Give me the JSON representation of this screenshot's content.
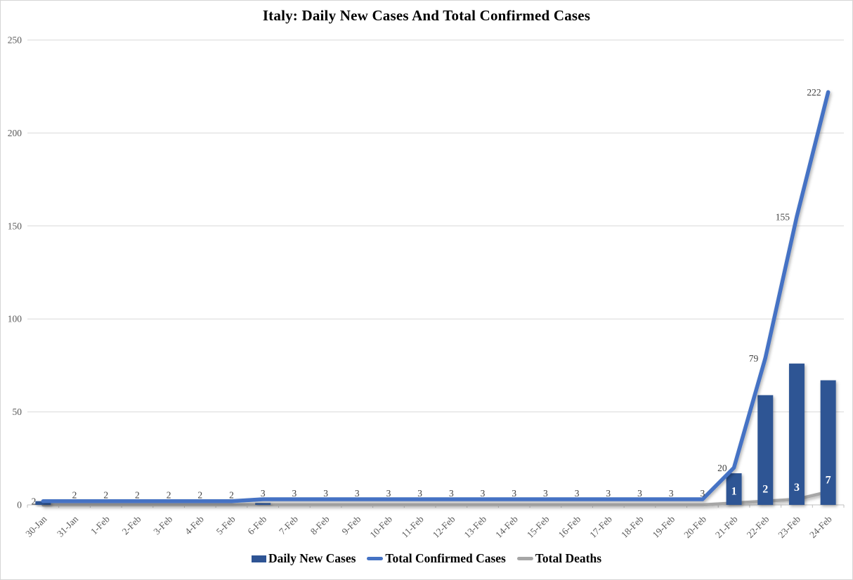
{
  "title": "Italy: Daily New Cases And Total Confirmed Cases",
  "legend": {
    "items": [
      {
        "label": "Daily New Cases",
        "marker": "bar-swatch",
        "color": "#2E5494"
      },
      {
        "label": "Total Confirmed Cases",
        "marker": "line-swatch",
        "color": "#4472C4"
      },
      {
        "label": "Total Deaths",
        "marker": "line-swatch",
        "color": "#A6A6A6"
      }
    ]
  },
  "axes": {
    "y_ticks": [
      "0",
      "50",
      "100",
      "150",
      "200",
      "250"
    ],
    "y_label_color": "#595959",
    "gridline_color": "#D9D9D9",
    "axis_line_color": "#BFBFBF"
  },
  "chart_data": {
    "type": "combo",
    "title": "Italy: Daily New Cases And Total Confirmed Cases",
    "xlabel": "",
    "ylabel": "",
    "ylim": [
      0,
      250
    ],
    "ytick_step": 50,
    "grid": true,
    "legend_position": "bottom",
    "categories": [
      "30-Jan",
      "31-Jan",
      "1-Feb",
      "2-Feb",
      "3-Feb",
      "4-Feb",
      "5-Feb",
      "6-Feb",
      "7-Feb",
      "8-Feb",
      "9-Feb",
      "10-Feb",
      "11-Feb",
      "12-Feb",
      "13-Feb",
      "14-Feb",
      "15-Feb",
      "16-Feb",
      "17-Feb",
      "18-Feb",
      "19-Feb",
      "20-Feb",
      "21-Feb",
      "22-Feb",
      "23-Feb",
      "24-Feb"
    ],
    "series": [
      {
        "name": "Daily New Cases",
        "type": "bar",
        "color": "#2E5494",
        "values": [
          2,
          0,
          0,
          0,
          0,
          0,
          0,
          1,
          0,
          0,
          0,
          0,
          0,
          0,
          0,
          0,
          0,
          0,
          0,
          0,
          0,
          0,
          17,
          59,
          76,
          67
        ]
      },
      {
        "name": "Total Confirmed Cases",
        "type": "line",
        "color": "#4472C4",
        "values": [
          2,
          2,
          2,
          2,
          2,
          2,
          2,
          3,
          3,
          3,
          3,
          3,
          3,
          3,
          3,
          3,
          3,
          3,
          3,
          3,
          3,
          3,
          20,
          79,
          155,
          222
        ],
        "labels": [
          "2",
          "2",
          "2",
          "2",
          "2",
          "2",
          "2",
          "3",
          "3",
          "3",
          "3",
          "3",
          "3",
          "3",
          "3",
          "3",
          "3",
          "3",
          "3",
          "3",
          "3",
          "3",
          "20",
          "79",
          "155",
          "222"
        ],
        "label_pos": [
          "left",
          "above",
          "above",
          "above",
          "above",
          "above",
          "above",
          "above",
          "above",
          "above",
          "above",
          "above",
          "above",
          "above",
          "above",
          "above",
          "above",
          "above",
          "above",
          "above",
          "above",
          "above",
          "left",
          "left",
          "left",
          "left"
        ],
        "label_color": "#404040"
      },
      {
        "name": "Total Deaths",
        "type": "line",
        "color": "#A6A6A6",
        "values": [
          0,
          0,
          0,
          0,
          0,
          0,
          0,
          0,
          0,
          0,
          0,
          0,
          0,
          0,
          0,
          0,
          0,
          0,
          0,
          0,
          0,
          0,
          1,
          2,
          3,
          7
        ],
        "labels": [
          "",
          "",
          "",
          "",
          "",
          "",
          "",
          "",
          "",
          "",
          "",
          "",
          "",
          "",
          "",
          "",
          "",
          "",
          "",
          "",
          "",
          "",
          "1",
          "2",
          "3",
          "7"
        ],
        "label_color": "#FFFFFF"
      }
    ]
  }
}
